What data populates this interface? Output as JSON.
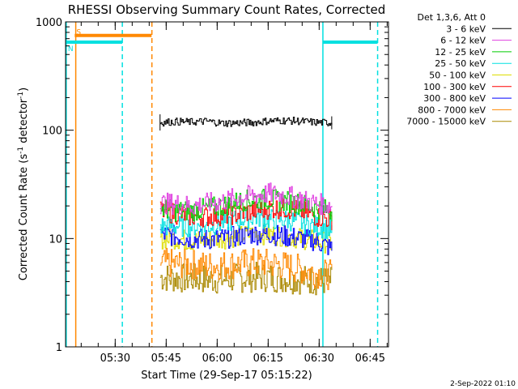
{
  "chart_data": {
    "type": "line",
    "title": "RHESSI Observing Summary Count Rates, Corrected",
    "ylabel": "Corrected Count Rate (s",
    "ylabel_sup1": "-1",
    "ylabel_mid": " detector",
    "ylabel_sup2": "-1",
    "ylabel_end": ")",
    "xlabel": "Start Time (29-Sep-17 05:15:22)",
    "x_unit": "minutes since 05:15:22",
    "xlim": [
      0,
      95
    ],
    "ylim": [
      1,
      1000
    ],
    "yscale": "log",
    "x_ticks": [
      {
        "label": "05:30",
        "value": 14.6
      },
      {
        "label": "05:45",
        "value": 29.6
      },
      {
        "label": "06:00",
        "value": 44.6
      },
      {
        "label": "06:15",
        "value": 59.6
      },
      {
        "label": "06:30",
        "value": 74.6
      },
      {
        "label": "06:45",
        "value": 89.6
      }
    ],
    "y_ticks": [
      {
        "label": "1",
        "value": 1
      },
      {
        "label": "10",
        "value": 10
      },
      {
        "label": "100",
        "value": 100
      },
      {
        "label": "1000",
        "value": 1000
      }
    ],
    "legend_title": "Det 1,3,6, Att 0",
    "legend_position": "outside-right",
    "data_start_x": 27.8,
    "data_end_x": 78.3,
    "series": [
      {
        "name": "3 - 6 keV",
        "color": "#000000",
        "values": [
          118,
          120,
          119,
          121,
          116,
          117,
          118,
          122,
          123,
          121,
          118,
          117
        ]
      },
      {
        "name": "6 - 12 keV",
        "color": "#e040e0",
        "values": [
          21,
          21,
          20,
          21,
          22,
          24,
          25,
          26,
          25,
          23,
          21,
          20
        ]
      },
      {
        "name": "12 - 25 keV",
        "color": "#00cc00",
        "values": [
          19,
          18,
          18,
          19,
          20,
          22,
          23,
          23,
          22,
          21,
          19,
          18
        ]
      },
      {
        "name": "25 - 50 keV",
        "color": "#00e0e0",
        "values": [
          13,
          13,
          13,
          13,
          14,
          15,
          16,
          15,
          15,
          14,
          13,
          12
        ]
      },
      {
        "name": "50 - 100 keV",
        "color": "#dddd00",
        "values": [
          10,
          10,
          9.5,
          9.8,
          10,
          10.5,
          11,
          11,
          10.5,
          10,
          9.5,
          9
        ]
      },
      {
        "name": "100 - 300 keV",
        "color": "#ff0000",
        "values": [
          18,
          17,
          16,
          16,
          16.5,
          17,
          18,
          19,
          19,
          18,
          16,
          15
        ]
      },
      {
        "name": "300 - 800 keV",
        "color": "#0000ff",
        "values": [
          11,
          10.5,
          10,
          9.8,
          10,
          10.5,
          11,
          11,
          10.5,
          10,
          9.5,
          8
        ]
      },
      {
        "name": "800 - 7000 keV",
        "color": "#ff8800",
        "values": [
          6,
          5.8,
          5.8,
          5.6,
          5.7,
          5.8,
          6,
          5.9,
          5.6,
          5.2,
          4.8,
          4.6
        ]
      },
      {
        "name": "7000 - 15000 keV",
        "color": "#aa8800",
        "values": [
          4.4,
          4.3,
          4.3,
          4.2,
          4.2,
          4.3,
          4.4,
          4.4,
          4.3,
          4.2,
          4.1,
          4.0
        ]
      }
    ],
    "flag_bars": [
      {
        "label": "S",
        "color": "#ff8800",
        "y": 750,
        "x_start": 2.7,
        "x_end": 25.3
      },
      {
        "label": "N",
        "color": "#00e0e0",
        "y": 650,
        "x_start": 0.2,
        "x_end": 16.7
      },
      {
        "label": "",
        "color": "#00e0e0",
        "y": 650,
        "x_start": 75.7,
        "x_end": 91.8
      }
    ],
    "vertical_markers": [
      {
        "x": 0.2,
        "color": "#00e0e0",
        "style": "solid"
      },
      {
        "x": 3.0,
        "color": "#ff8800",
        "style": "solid"
      },
      {
        "x": 16.7,
        "color": "#00e0e0",
        "style": "dashed"
      },
      {
        "x": 25.4,
        "color": "#ff8800",
        "style": "dashed"
      },
      {
        "x": 75.7,
        "color": "#00e0e0",
        "style": "solid"
      },
      {
        "x": 91.8,
        "color": "#00e0e0",
        "style": "dashed"
      }
    ]
  },
  "footer": {
    "timestamp": "2-Sep-2022 01:10"
  }
}
